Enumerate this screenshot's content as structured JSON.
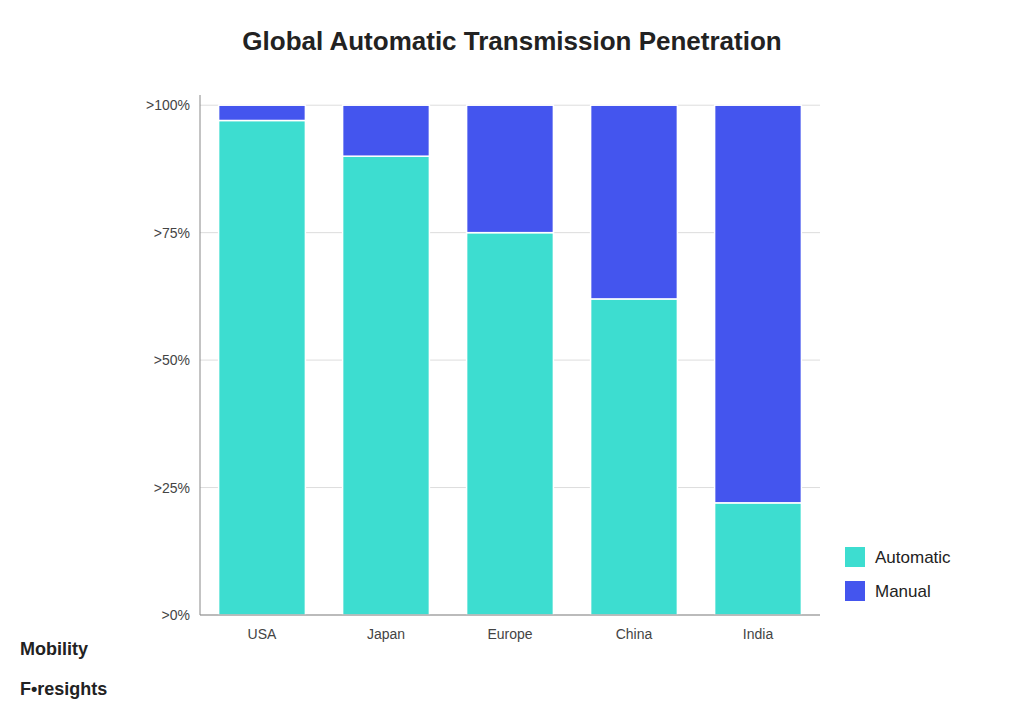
{
  "chart_data": {
    "type": "bar",
    "stacked": true,
    "title": "Global Automatic Transmission Penetration",
    "categories": [
      "USA",
      "Japan",
      "Europe",
      "China",
      "India"
    ],
    "series": [
      {
        "name": "Automatic",
        "color": "#3DDDD0",
        "values": [
          97,
          90,
          75,
          62,
          22
        ]
      },
      {
        "name": "Manual",
        "color": "#4455EE",
        "values": [
          3,
          10,
          25,
          38,
          78
        ]
      }
    ],
    "ylim": [
      0,
      102
    ],
    "yticks": [
      {
        "value": 0,
        "label": ">0%"
      },
      {
        "value": 25,
        "label": ">25%"
      },
      {
        "value": 50,
        "label": ">50%"
      },
      {
        "value": 75,
        "label": ">75%"
      },
      {
        "value": 100,
        "label": ">100%"
      }
    ],
    "grid": true,
    "legend": "lower right",
    "annotations": [
      "Mobility",
      "F•resights"
    ]
  }
}
